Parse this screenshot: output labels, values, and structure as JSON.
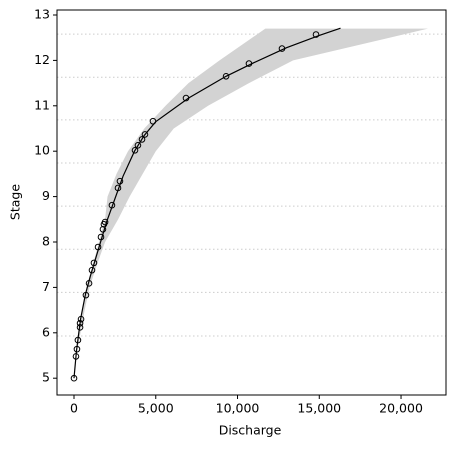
{
  "chart_data": {
    "type": "rating-curve",
    "xlabel": "Discharge",
    "ylabel": "Stage",
    "xlim": [
      -1040,
      22750
    ],
    "ylim": [
      4.63,
      13.11
    ],
    "xticks": [
      0,
      {
        "value": 5000,
        "label": "5,000"
      },
      {
        "value": 10000,
        "label": "10,000"
      },
      {
        "value": 15000,
        "label": "15,000"
      },
      {
        "value": 20000,
        "label": "20,000"
      }
    ],
    "yticks": [
      5,
      6,
      7,
      8,
      9,
      10,
      11,
      12,
      13
    ],
    "hlines": [
      5.93,
      6.89,
      7.84,
      8.79,
      9.74,
      10.69,
      11.63,
      12.58
    ],
    "band": {
      "color": "#d3d3d3",
      "y": [
        5.5,
        6,
        6.5,
        7,
        7.5,
        8,
        8.5,
        9,
        9.5,
        10,
        10.5,
        11,
        11.5,
        12,
        12.7
      ],
      "x_low": [
        100,
        300,
        500,
        750,
        1150,
        1530,
        1900,
        2050,
        2600,
        3300,
        4300,
        5600,
        7000,
        8900,
        11700
      ],
      "x_high": [
        150,
        400,
        650,
        950,
        1400,
        1900,
        2700,
        3400,
        4200,
        5000,
        6100,
        8200,
        10700,
        13400,
        21650
      ]
    },
    "curve": {
      "color": "#000000",
      "x": [
        0,
        150,
        400,
        700,
        1000,
        1500,
        2000,
        2500,
        3000,
        3700,
        4300,
        5000,
        7000,
        9300,
        11000,
        13000,
        15000,
        16300
      ],
      "y": [
        5.0,
        5.6,
        6.3,
        6.85,
        7.25,
        7.85,
        8.45,
        8.95,
        9.45,
        10.0,
        10.35,
        10.65,
        11.17,
        11.65,
        11.95,
        12.28,
        12.55,
        12.71
      ]
    },
    "observations": {
      "color": "#000000",
      "x": [
        0,
        120,
        180,
        240,
        370,
        370,
        430,
        730,
        920,
        1100,
        1220,
        1470,
        1650,
        1770,
        1830,
        1900,
        2320,
        2690,
        2810,
        3730,
        3910,
        4160,
        4340,
        4830,
        6850,
        9300,
        10700,
        12720,
        14800
      ],
      "y": [
        5.0,
        5.48,
        5.64,
        5.84,
        6.12,
        6.21,
        6.3,
        6.83,
        7.09,
        7.38,
        7.54,
        7.89,
        8.11,
        8.28,
        8.39,
        8.44,
        8.81,
        9.19,
        9.34,
        10.02,
        10.13,
        10.26,
        10.37,
        10.66,
        11.17,
        11.65,
        11.93,
        12.26,
        12.57
      ]
    }
  }
}
